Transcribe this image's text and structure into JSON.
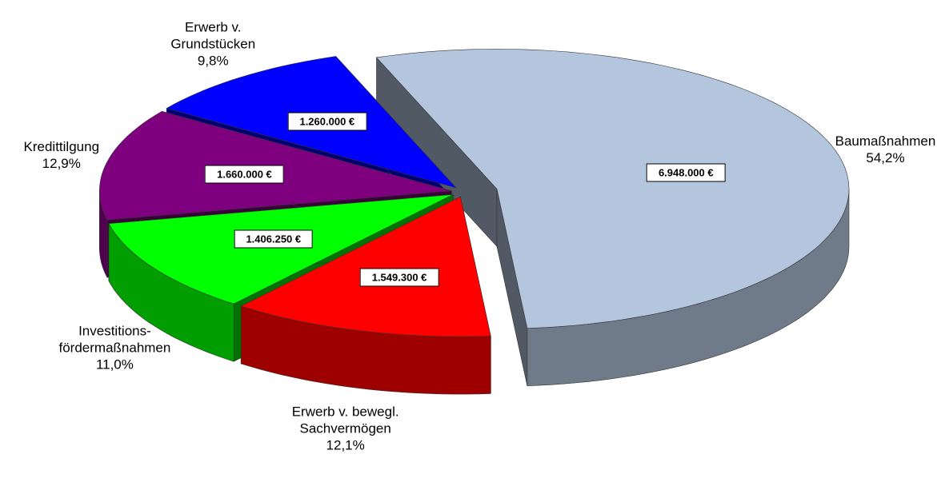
{
  "chart_data": {
    "type": "pie",
    "categories": [
      "Baumaßnahmen",
      "Erwerb v. bewegl. Sachvermögen",
      "Investitions-fördermaßnahmen",
      "Kredittilgung",
      "Erwerb v. Grundstücken"
    ],
    "values": [
      6948000,
      1549300,
      1406250,
      1660000,
      1260000
    ],
    "value_labels": [
      "6.948.000 €",
      "1.549.300 €",
      "1.406.250 €",
      "1.660.000 €",
      "1.260.000 €"
    ],
    "percent_labels": [
      "54,2%",
      "12,1%",
      "11,0%",
      "12,9%",
      "9,8%"
    ],
    "colors": [
      "#b4c6de",
      "#ff0000",
      "#00ff00",
      "#7f007f",
      "#0000ff"
    ]
  }
}
